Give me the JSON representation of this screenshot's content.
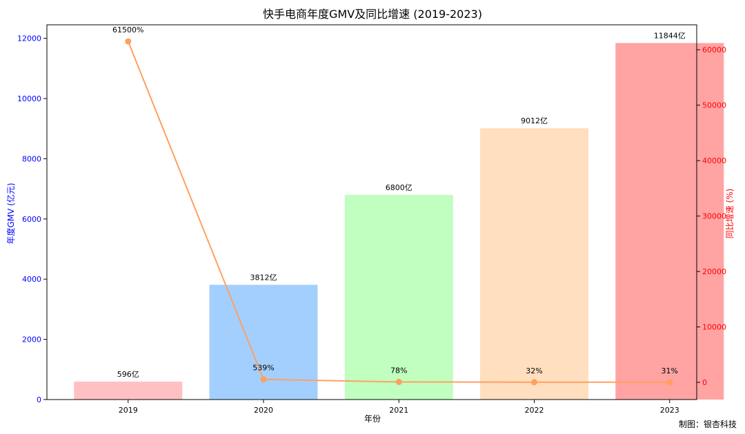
{
  "chart_data": {
    "type": "bar",
    "title": "快手电商年度GMV及同比增速 (2019-2023)",
    "xlabel": "年份",
    "ylabel": "年度GMV (亿元)",
    "y2label": "同比增速 (%)",
    "categories": [
      "2019",
      "2020",
      "2021",
      "2022",
      "2023"
    ],
    "series": [
      {
        "name": "年度GMV",
        "axis": "left",
        "type": "bar",
        "values": [
          596,
          3812,
          6800,
          9012,
          11844
        ],
        "labels": [
          "596亿",
          "3812亿",
          "6800亿",
          "9012亿",
          "11844亿"
        ],
        "colors": [
          "#ffc0c4",
          "#a3cffe",
          "#c0ffbf",
          "#ffdfbf",
          "#ffa3a3"
        ]
      },
      {
        "name": "同比增速",
        "axis": "right",
        "type": "line",
        "values": [
          61500,
          539,
          78,
          32,
          31
        ],
        "labels": [
          "61500%",
          "539%",
          "78%",
          "32%",
          "31%"
        ],
        "color": "#ffa060"
      }
    ],
    "ylim": [
      0,
      12450
    ],
    "yticks": [
      0,
      2000,
      4000,
      6000,
      8000,
      10000,
      12000
    ],
    "y2lim": [
      -3100,
      64500
    ],
    "y2ticks": [
      0,
      10000,
      20000,
      30000,
      40000,
      50000,
      60000
    ],
    "left_axis_color": "#0000ff",
    "right_axis_color": "#ff0000",
    "grid": false
  },
  "credit": "制图：银杏科技"
}
